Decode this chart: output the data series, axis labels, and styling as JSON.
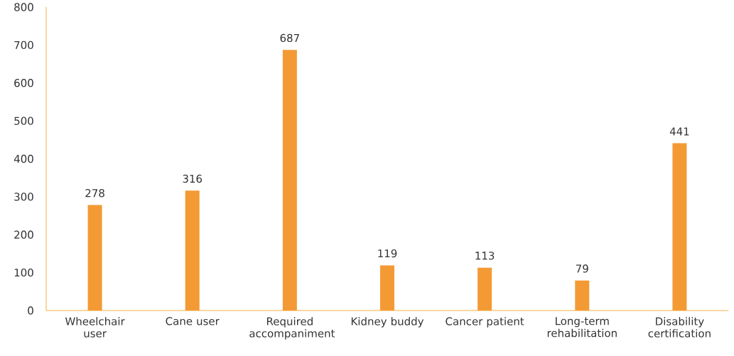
{
  "chart_data": {
    "type": "bar",
    "categories": [
      "Wheelchair user",
      "Cane user",
      "Required accompaniment",
      "Kidney buddy",
      "Cancer patient",
      "Long-term rehabilitation",
      "Disability certification"
    ],
    "values": [
      278,
      316,
      687,
      119,
      113,
      79,
      441
    ],
    "color": "#f39a35",
    "ylim": [
      0,
      800
    ],
    "yticks": [
      0,
      100,
      200,
      300,
      400,
      500,
      600,
      700,
      800
    ],
    "data_labels": true
  }
}
